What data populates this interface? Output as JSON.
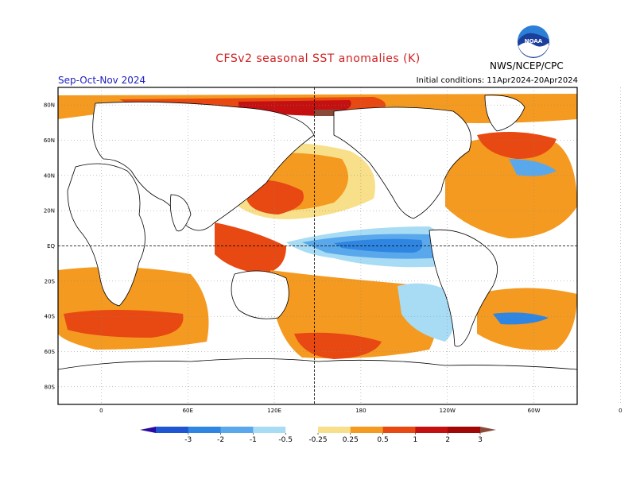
{
  "title": "CFSv2 seasonal SST anomalies (K)",
  "season": "Sep-Oct-Nov 2024",
  "initial_conditions": "Initial conditions: 11Apr2024-20Apr2024",
  "agency": "NWS/NCEP/CPC",
  "logo_text": "NOAA",
  "icons": {
    "logo": "noaa-logo-icon"
  },
  "map": {
    "projection": "cylindrical",
    "lon_range": [
      -30,
      330
    ],
    "lat_range": [
      -90,
      90
    ],
    "lat_ticks": [
      {
        "lat": 80,
        "label": "80N"
      },
      {
        "lat": 60,
        "label": "60N"
      },
      {
        "lat": 40,
        "label": "40N"
      },
      {
        "lat": 20,
        "label": "20N"
      },
      {
        "lat": 0,
        "label": "EQ"
      },
      {
        "lat": -20,
        "label": "20S"
      },
      {
        "lat": -40,
        "label": "40S"
      },
      {
        "lat": -60,
        "label": "60S"
      },
      {
        "lat": -80,
        "label": "80S"
      }
    ],
    "lon_ticks": [
      {
        "lon": 0,
        "label": "0"
      },
      {
        "lon": 60,
        "label": "60E"
      },
      {
        "lon": 120,
        "label": "120E"
      },
      {
        "lon": 180,
        "label": "180"
      },
      {
        "lon": 240,
        "label": "120W"
      },
      {
        "lon": 300,
        "label": "60W"
      },
      {
        "lon": 360,
        "label": "0"
      }
    ]
  },
  "colorbar": {
    "levels": [
      "-3",
      "-2",
      "-1",
      "-0.5",
      "-0.25",
      "0.25",
      "0.5",
      "1",
      "2",
      "3"
    ],
    "colors": [
      "#2a0aa0",
      "#1f54d2",
      "#2f86e2",
      "#5aa8ec",
      "#a8dcf4",
      "#ffffff",
      "#f8e08a",
      "#f49a20",
      "#e84812",
      "#c41010",
      "#a00808",
      "#8a4a3a"
    ]
  }
}
